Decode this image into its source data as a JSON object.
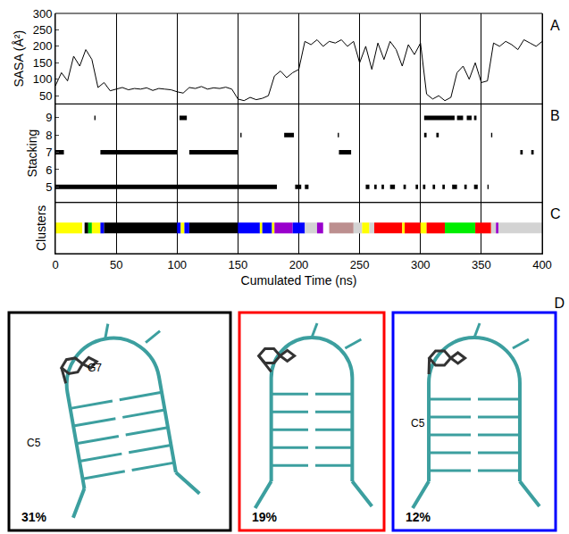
{
  "chart_data": [
    {
      "panel": "A",
      "type": "line",
      "ylabel": "SASA (Å²)",
      "color": "#000000",
      "x": [
        0,
        5,
        10,
        15,
        20,
        25,
        30,
        35,
        40,
        45,
        50,
        55,
        60,
        65,
        70,
        75,
        80,
        85,
        90,
        95,
        100,
        105,
        110,
        115,
        120,
        125,
        130,
        135,
        140,
        145,
        150,
        155,
        160,
        165,
        170,
        175,
        180,
        185,
        190,
        195,
        200,
        205,
        210,
        215,
        220,
        225,
        230,
        235,
        240,
        245,
        250,
        255,
        260,
        265,
        270,
        275,
        280,
        285,
        290,
        295,
        300,
        305,
        310,
        315,
        320,
        325,
        330,
        335,
        340,
        345,
        350,
        355,
        360,
        365,
        370,
        375,
        380,
        385,
        390,
        395,
        400
      ],
      "values": [
        80,
        120,
        95,
        170,
        140,
        190,
        160,
        75,
        90,
        65,
        70,
        75,
        68,
        72,
        70,
        74,
        66,
        72,
        70,
        68,
        62,
        58,
        75,
        72,
        78,
        70,
        74,
        72,
        76,
        70,
        40,
        35,
        45,
        38,
        42,
        50,
        110,
        125,
        105,
        120,
        130,
        215,
        205,
        220,
        200,
        215,
        210,
        220,
        200,
        215,
        150,
        200,
        130,
        210,
        160,
        215,
        190,
        140,
        205,
        175,
        210,
        55,
        40,
        50,
        35,
        45,
        120,
        140,
        100,
        150,
        90,
        95,
        210,
        200,
        215,
        205,
        190,
        220,
        210,
        200,
        215
      ],
      "ylim": [
        25,
        300
      ],
      "yticks": [
        50,
        100,
        150,
        200,
        250,
        300
      ],
      "tick_labels": "y"
    },
    {
      "panel": "B",
      "type": "segments",
      "ylabel": "Stacking",
      "color": "#000000",
      "events": [
        {
          "level": 9,
          "intervals": [
            [
              32,
              33
            ],
            [
              102,
              108
            ],
            [
              303,
              328
            ],
            [
              330,
              335
            ],
            [
              338,
              342
            ],
            [
              344,
              346
            ]
          ]
        },
        {
          "level": 8,
          "intervals": [
            [
              152,
              153
            ],
            [
              188,
              196
            ],
            [
              232,
              233
            ],
            [
              303,
              305
            ],
            [
              313,
              315
            ],
            [
              358,
              359
            ]
          ]
        },
        {
          "level": 7,
          "intervals": [
            [
              0,
              7
            ],
            [
              37,
              100
            ],
            [
              110,
              150
            ],
            [
              233,
              243
            ],
            [
              382,
              384
            ],
            [
              391,
              393
            ]
          ]
        },
        {
          "level": 5,
          "intervals": [
            [
              0,
              182
            ],
            [
              197,
              202
            ],
            [
              205,
              208
            ],
            [
              255,
              258
            ],
            [
              262,
              264
            ],
            [
              268,
              270
            ],
            [
              275,
              279
            ],
            [
              286,
              288
            ],
            [
              296,
              298
            ],
            [
              302,
              304
            ],
            [
              310,
              312
            ],
            [
              318,
              320
            ],
            [
              326,
              330
            ],
            [
              336,
              338
            ],
            [
              344,
              347
            ],
            [
              355,
              356
            ]
          ]
        }
      ],
      "ylim": [
        4.1,
        9.8
      ],
      "yticks": [
        5,
        6,
        7,
        8,
        9
      ],
      "tick_labels": "y"
    },
    {
      "panel": "C",
      "type": "segments",
      "ylabel": "Clusters",
      "xlabel": "Cumulated Time (ns)",
      "segments": [
        {
          "start": 0,
          "end": 22,
          "color": "#ffff00"
        },
        {
          "start": 24,
          "end": 27,
          "color": "#000000"
        },
        {
          "start": 27,
          "end": 30,
          "color": "#00cc00"
        },
        {
          "start": 30,
          "end": 37,
          "color": "#ffff00"
        },
        {
          "start": 37,
          "end": 40,
          "color": "#0000ff"
        },
        {
          "start": 40,
          "end": 100,
          "color": "#000000"
        },
        {
          "start": 100,
          "end": 103,
          "color": "#0000ff"
        },
        {
          "start": 103,
          "end": 106,
          "color": "#ffff00"
        },
        {
          "start": 106,
          "end": 110,
          "color": "#0000ff"
        },
        {
          "start": 110,
          "end": 150,
          "color": "#000000"
        },
        {
          "start": 150,
          "end": 168,
          "color": "#0000ff"
        },
        {
          "start": 168,
          "end": 170,
          "color": "#ffff00"
        },
        {
          "start": 170,
          "end": 178,
          "color": "#0000ff"
        },
        {
          "start": 178,
          "end": 180,
          "color": "#ffff00"
        },
        {
          "start": 180,
          "end": 195,
          "color": "#9900cc"
        },
        {
          "start": 195,
          "end": 205,
          "color": "#0000ff"
        },
        {
          "start": 205,
          "end": 215,
          "color": "#d3d3d3"
        },
        {
          "start": 215,
          "end": 220,
          "color": "#9900cc"
        },
        {
          "start": 225,
          "end": 245,
          "color": "#bc8f8f"
        },
        {
          "start": 245,
          "end": 252,
          "color": "#d3d3d3"
        },
        {
          "start": 252,
          "end": 258,
          "color": "#ffff00"
        },
        {
          "start": 258,
          "end": 262,
          "color": "#d3d3d3"
        },
        {
          "start": 262,
          "end": 285,
          "color": "#ff0000"
        },
        {
          "start": 285,
          "end": 287,
          "color": "#ffff00"
        },
        {
          "start": 287,
          "end": 300,
          "color": "#ff0000"
        },
        {
          "start": 300,
          "end": 305,
          "color": "#ffff00"
        },
        {
          "start": 305,
          "end": 320,
          "color": "#ff0000"
        },
        {
          "start": 320,
          "end": 345,
          "color": "#00ee00"
        },
        {
          "start": 345,
          "end": 358,
          "color": "#ff0000"
        },
        {
          "start": 358,
          "end": 362,
          "color": "#d3d3d3"
        },
        {
          "start": 362,
          "end": 364,
          "color": "#9900cc"
        },
        {
          "start": 364,
          "end": 400,
          "color": "#d3d3d3"
        }
      ],
      "xlim": [
        0,
        400
      ],
      "xticks": [
        0,
        50,
        100,
        150,
        200,
        250,
        300,
        350,
        400
      ],
      "grid": true,
      "tick_labels": "x"
    }
  ],
  "structures": {
    "panel": "D",
    "items": [
      {
        "border_color": "#000000",
        "population": "31%",
        "labels": [
          "G7",
          "C5"
        ]
      },
      {
        "border_color": "#ff0000",
        "population": "19%"
      },
      {
        "border_color": "#0000ff",
        "population": "12%",
        "labels": [
          "C5"
        ]
      }
    ]
  }
}
